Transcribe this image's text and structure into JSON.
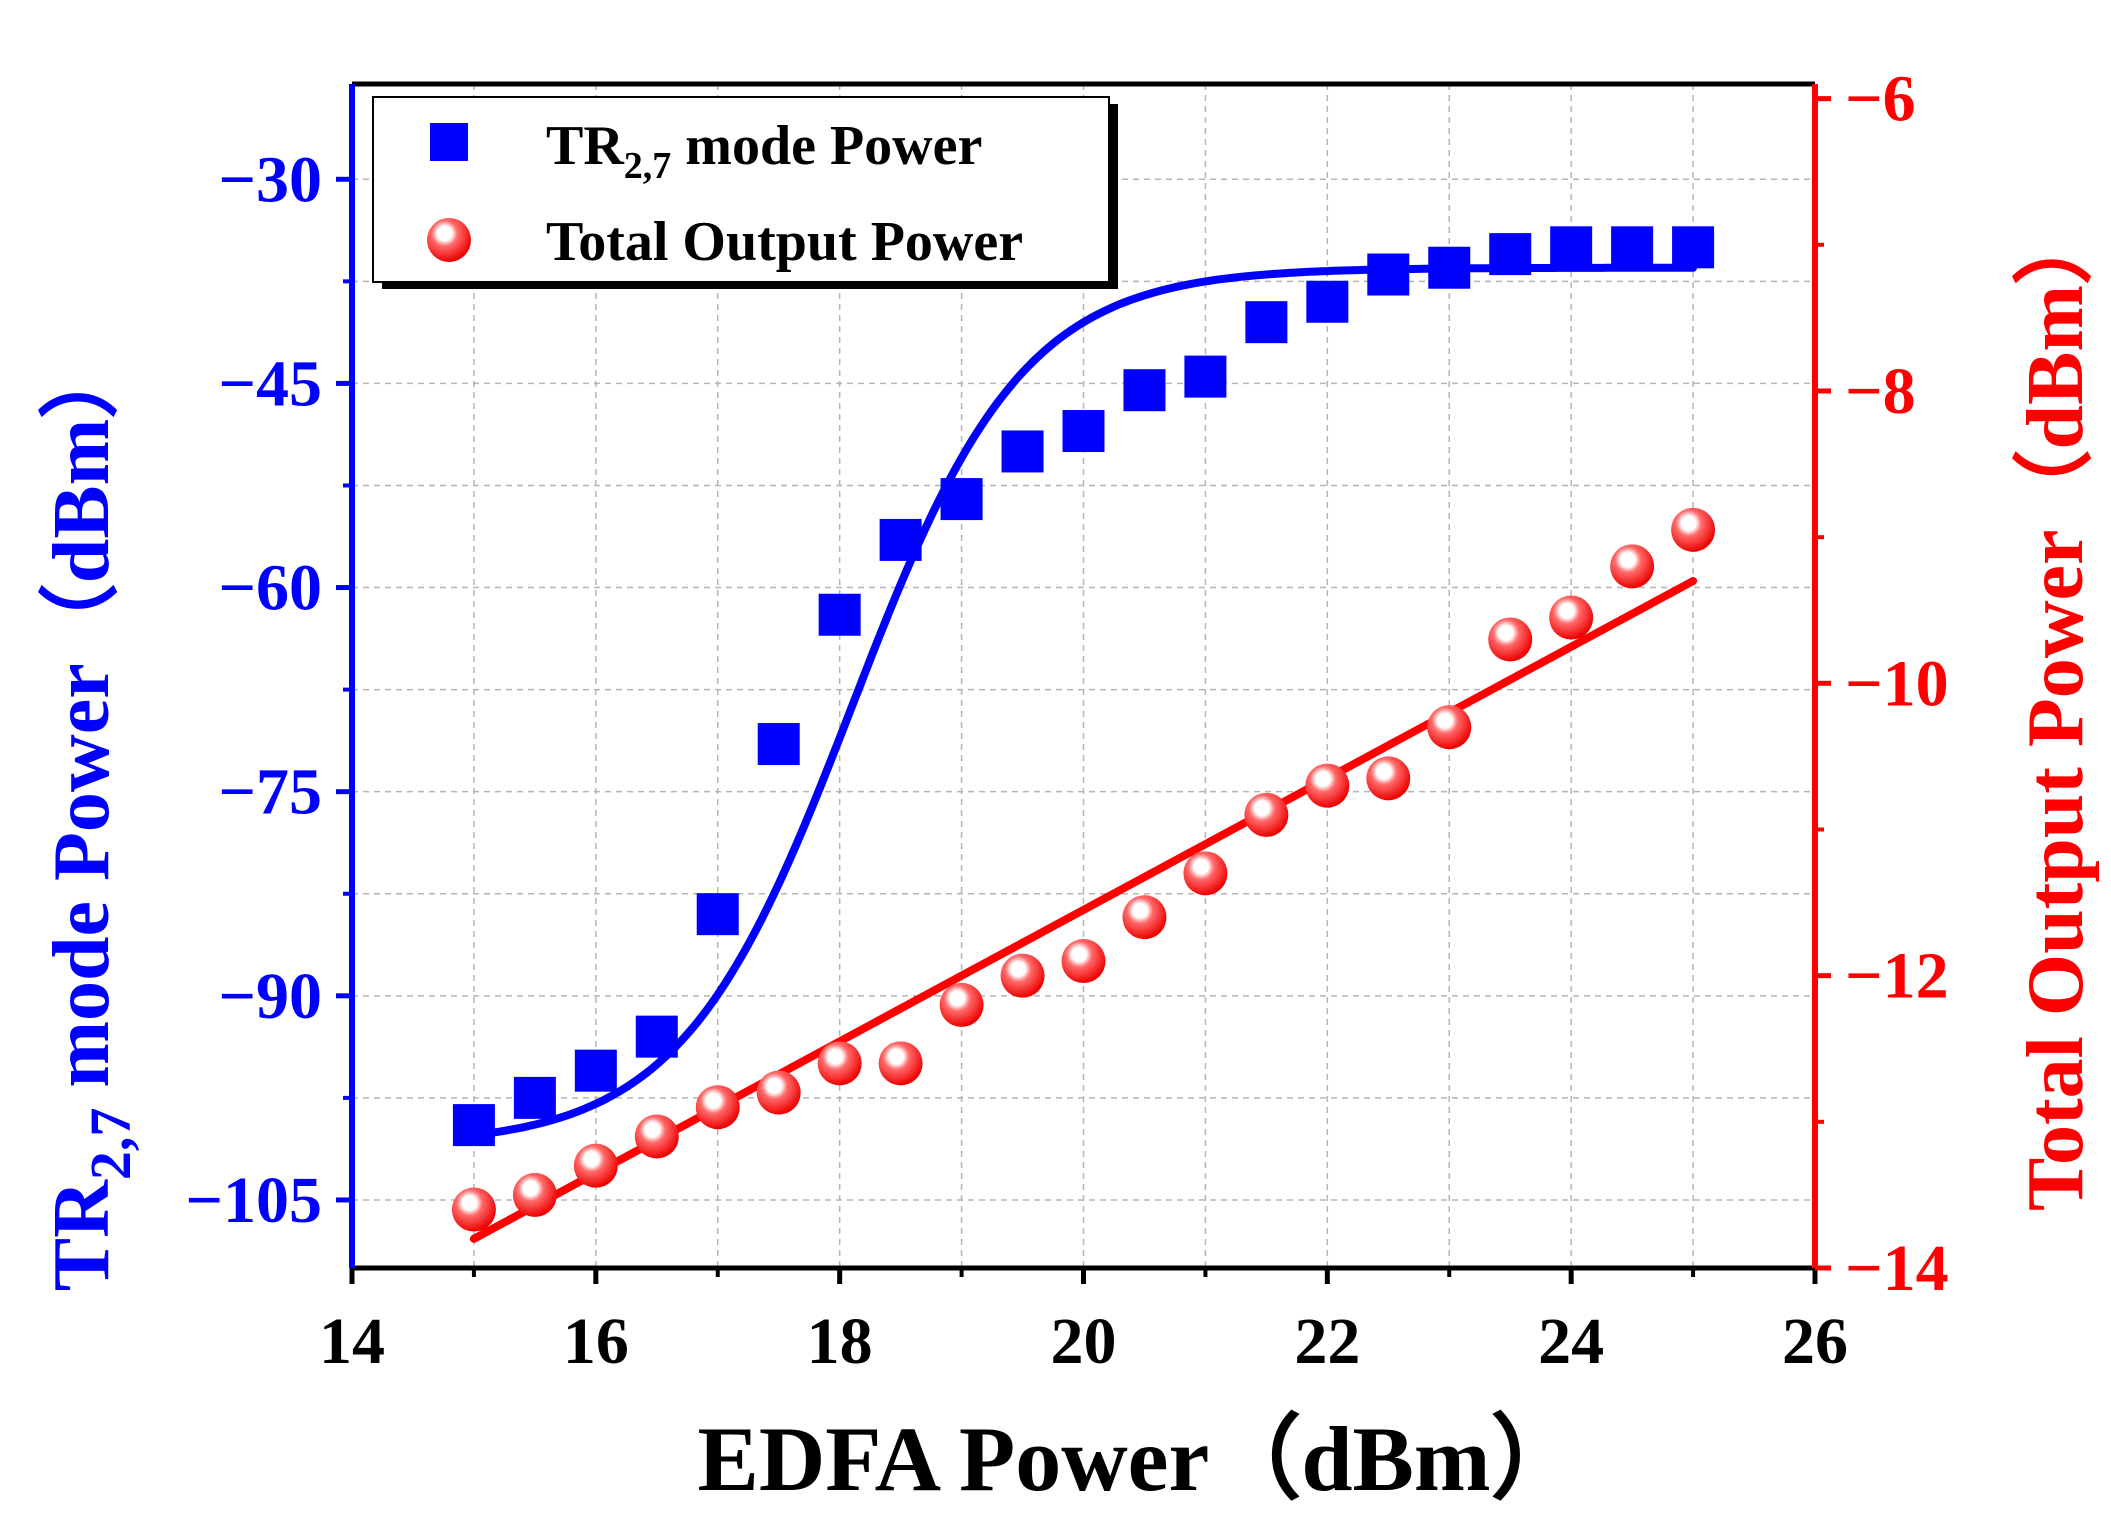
{
  "chart_data": {
    "type": "scatter",
    "title": "",
    "xlabel": "EDFA Power（dBm）",
    "xlim": [
      14,
      26
    ],
    "x_ticks": [
      14,
      16,
      18,
      20,
      22,
      24,
      26
    ],
    "x_tick_labels": [
      "14",
      "16",
      "18",
      "20",
      "22",
      "24",
      "26"
    ],
    "left_axis": {
      "label_main": "TR",
      "label_sub": "2,7",
      "label_rest": " mode Power（dBm）",
      "color": "#0000ff",
      "ylim": [
        -110,
        -23
      ],
      "ticks": [
        -30,
        -45,
        -60,
        -75,
        -90,
        -105
      ],
      "tick_labels": [
        "−30",
        "−45",
        "−60",
        "−75",
        "−90",
        "−105"
      ]
    },
    "right_axis": {
      "label": "Total Output Power（dBm）",
      "color": "#ff0000",
      "ylim": [
        -14,
        -5.9
      ],
      "ticks": [
        -6,
        -8,
        -10,
        -12,
        -14
      ],
      "tick_labels": [
        "−6",
        "−8",
        "−10",
        "−12",
        "−14"
      ]
    },
    "x": [
      15,
      15.5,
      16,
      16.5,
      17,
      17.5,
      18,
      18.5,
      19,
      19.5,
      20,
      20.5,
      21,
      21.5,
      22,
      22.5,
      23,
      23.5,
      24,
      24.5,
      25
    ],
    "series": [
      {
        "name": "TR2,7 mode Power",
        "axis": "left",
        "marker": "square",
        "color": "#0000ff",
        "values": [
          -99.5,
          -97.5,
          -95.5,
          -93,
          -84,
          -71.5,
          -62,
          -56.5,
          -53.5,
          -50,
          -48.5,
          -45.5,
          -44.5,
          -40.5,
          -39,
          -37,
          -36.5,
          -35.5,
          -35,
          -35,
          -35
        ]
      },
      {
        "name": "Total Output Power",
        "axis": "right",
        "marker": "sphere",
        "color": "#ff0000",
        "values": [
          -13.6,
          -13.5,
          -13.3,
          -13.1,
          -12.9,
          -12.8,
          -12.6,
          -12.6,
          -12.2,
          -12.0,
          -11.9,
          -11.6,
          -11.3,
          -10.9,
          -10.7,
          -10.65,
          -10.3,
          -9.7,
          -9.55,
          -9.2,
          -8.95
        ]
      }
    ],
    "fits": [
      {
        "name": "TR2,7 sigmoid fit",
        "axis": "left",
        "color": "#0000ff",
        "model": "logistic",
        "bottom": -101,
        "top": -36.5,
        "x0": 18.1,
        "width": 0.7,
        "x_range": [
          15,
          25
        ]
      },
      {
        "name": "Total Output linear fit",
        "axis": "right",
        "color": "#ff0000",
        "model": "linear",
        "points": [
          [
            15,
            -13.8
          ],
          [
            25,
            -9.3
          ]
        ]
      }
    ],
    "legend": {
      "position": "top-left",
      "entries": [
        {
          "label_main": "TR",
          "label_sub": "2,7",
          "label_rest": " mode Power"
        },
        {
          "label_main": "Total Output Power",
          "label_sub": "",
          "label_rest": ""
        }
      ]
    },
    "grid": true
  }
}
